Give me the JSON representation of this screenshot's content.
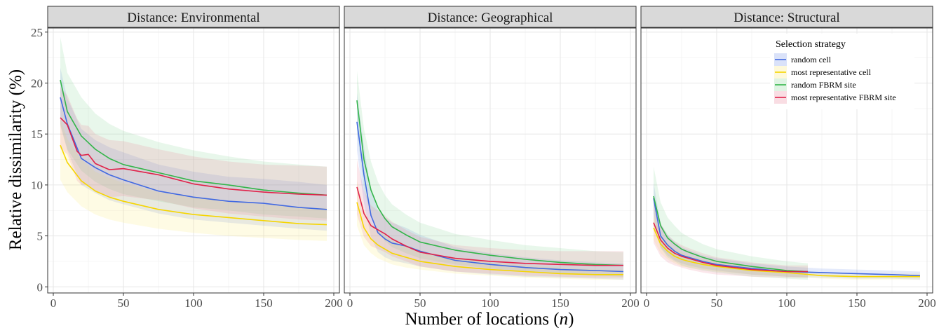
{
  "chart_data": {
    "type": "line",
    "ylabel": "Relative dissimilarity (%)",
    "xlabel_prefix": "Number of locations (",
    "xlabel_var": "n",
    "xlabel_suffix": ")",
    "xlim": [
      0,
      200
    ],
    "ylim": [
      0,
      25
    ],
    "xticks": [
      0,
      50,
      100,
      150,
      200
    ],
    "yticks": [
      0,
      5,
      10,
      15,
      20,
      25
    ],
    "grid": true,
    "legend": {
      "title": "Selection strategy",
      "placement": "top-right of third panel"
    },
    "series_styles": [
      {
        "name": "random cell",
        "color": "#4169E1",
        "fill": "#6a8be8"
      },
      {
        "name": "most representative cell",
        "color": "#F5D500",
        "fill": "#fce96a"
      },
      {
        "name": "random FBRM site",
        "color": "#33B54A",
        "fill": "#7fd28f"
      },
      {
        "name": "most representative FBRM site",
        "color": "#E0224A",
        "fill": "#e8798f"
      }
    ],
    "panels": [
      {
        "strip": "Distance: Environmental",
        "series": [
          {
            "name": "random cell",
            "x": [
              5,
              10,
              20,
              30,
              40,
              50,
              75,
              100,
              125,
              150,
              175,
              195
            ],
            "y": [
              18.6,
              16.0,
              12.6,
              11.7,
              11.0,
              10.5,
              9.4,
              8.8,
              8.4,
              8.2,
              7.8,
              7.6
            ],
            "upper": [
              21.5,
              18.5,
              15.5,
              14.4,
              13.7,
              13.2,
              12.0,
              11.3,
              10.8,
              10.6,
              10.3,
              10.0
            ],
            "lower": [
              15.8,
              13.4,
              10.0,
              9.2,
              8.5,
              8.1,
              7.2,
              6.6,
              6.3,
              6.0,
              5.7,
              5.5
            ]
          },
          {
            "name": "most representative cell",
            "x": [
              5,
              10,
              20,
              30,
              40,
              50,
              75,
              100,
              125,
              150,
              175,
              195
            ],
            "y": [
              13.9,
              12.2,
              10.4,
              9.4,
              8.8,
              8.4,
              7.6,
              7.1,
              6.8,
              6.5,
              6.2,
              6.1
            ],
            "upper": [
              16.5,
              14.5,
              12.5,
              11.3,
              10.7,
              10.2,
              9.3,
              8.8,
              8.4,
              8.1,
              7.8,
              7.7
            ],
            "lower": [
              10.5,
              9.3,
              7.9,
              7.1,
              6.6,
              6.3,
              5.7,
              5.3,
              5.0,
              4.8,
              4.6,
              4.5
            ]
          },
          {
            "name": "random FBRM site",
            "x": [
              5,
              10,
              20,
              30,
              40,
              50,
              75,
              100,
              125,
              150,
              175,
              195
            ],
            "y": [
              20.3,
              17.2,
              14.8,
              13.5,
              12.6,
              12.0,
              11.2,
              10.4,
              10.0,
              9.5,
              9.2,
              9.0
            ],
            "upper": [
              24.5,
              21.0,
              18.6,
              17.0,
              16.0,
              15.3,
              14.2,
              13.4,
              12.8,
              12.3,
              12.0,
              11.8
            ],
            "lower": [
              16.0,
              13.5,
              11.4,
              10.3,
              9.6,
              9.1,
              8.4,
              7.8,
              7.5,
              7.1,
              6.9,
              6.7
            ]
          },
          {
            "name": "most representative FBRM site",
            "x": [
              5,
              10,
              17,
              20,
              25,
              30,
              40,
              50,
              75,
              100,
              125,
              150,
              175,
              195
            ],
            "y": [
              16.6,
              15.9,
              13.3,
              12.9,
              13.0,
              12.1,
              11.5,
              11.6,
              11.0,
              10.1,
              9.6,
              9.3,
              9.1,
              9.0
            ],
            "upper": [
              19.6,
              18.8,
              16.5,
              15.9,
              15.8,
              15.0,
              14.4,
              14.3,
              13.5,
              12.8,
              12.3,
              12.0,
              11.9,
              11.8
            ],
            "lower": [
              13.6,
              13.0,
              10.4,
              10.0,
              10.0,
              9.3,
              8.8,
              8.9,
              8.5,
              7.7,
              7.2,
              6.9,
              6.6,
              6.5
            ]
          }
        ]
      },
      {
        "strip": "Distance: Geographical",
        "series": [
          {
            "name": "random cell",
            "x": [
              5,
              10,
              15,
              20,
              25,
              30,
              40,
              50,
              75,
              100,
              125,
              150,
              175,
              195
            ],
            "y": [
              16.2,
              11.0,
              7.0,
              5.3,
              4.7,
              4.3,
              4.0,
              3.5,
              2.6,
              2.2,
              1.9,
              1.7,
              1.6,
              1.5
            ],
            "upper": [
              19.0,
              13.8,
              9.5,
              7.5,
              6.8,
              6.3,
              5.8,
              5.1,
              3.9,
              3.3,
              2.9,
              2.6,
              2.4,
              2.3
            ],
            "lower": [
              13.4,
              8.2,
              4.9,
              3.4,
              2.9,
              2.6,
              2.3,
              2.0,
              1.5,
              1.2,
              1.0,
              0.9,
              0.8,
              0.7
            ]
          },
          {
            "name": "most representative cell",
            "x": [
              5,
              10,
              15,
              20,
              30,
              40,
              50,
              75,
              100,
              125,
              150,
              175,
              195
            ],
            "y": [
              8.3,
              5.8,
              4.7,
              4.1,
              3.3,
              2.9,
              2.5,
              2.0,
              1.7,
              1.5,
              1.3,
              1.2,
              1.2
            ],
            "upper": [
              10.5,
              7.6,
              6.3,
              5.5,
              4.5,
              3.9,
              3.4,
              2.8,
              2.4,
              2.1,
              1.9,
              1.7,
              1.7
            ],
            "lower": [
              6.0,
              4.1,
              3.3,
              2.8,
              2.2,
              1.9,
              1.7,
              1.3,
              1.1,
              0.9,
              0.8,
              0.7,
              0.7
            ]
          },
          {
            "name": "random FBRM site",
            "x": [
              5,
              10,
              15,
              20,
              25,
              30,
              40,
              50,
              75,
              100,
              125,
              150,
              175,
              195
            ],
            "y": [
              18.3,
              12.5,
              9.5,
              7.8,
              6.7,
              5.9,
              5.1,
              4.4,
              3.6,
              3.1,
              2.7,
              2.4,
              2.2,
              2.1
            ],
            "upper": [
              21.2,
              15.5,
              12.3,
              10.3,
              9.0,
              8.1,
              7.1,
              6.3,
              5.2,
              4.6,
              4.1,
              3.8,
              3.5,
              3.4
            ],
            "lower": [
              15.4,
              9.6,
              6.9,
              5.4,
              4.5,
              3.9,
              3.3,
              2.8,
              2.2,
              1.8,
              1.5,
              1.3,
              1.1,
              1.0
            ]
          },
          {
            "name": "most representative FBRM site",
            "x": [
              5,
              10,
              15,
              20,
              25,
              30,
              40,
              50,
              75,
              100,
              125,
              150,
              175,
              195
            ],
            "y": [
              9.8,
              7.2,
              6.0,
              5.6,
              5.2,
              4.7,
              4.0,
              3.4,
              2.8,
              2.5,
              2.3,
              2.2,
              2.1,
              2.1
            ],
            "upper": [
              12.5,
              9.5,
              8.0,
              7.5,
              7.0,
              6.4,
              5.6,
              4.9,
              4.1,
              3.8,
              3.6,
              3.5,
              3.5,
              3.5
            ],
            "lower": [
              7.1,
              4.9,
              4.0,
              3.7,
              3.4,
              3.0,
              2.5,
              2.0,
              1.5,
              1.3,
              1.1,
              1.0,
              0.9,
              0.9
            ]
          }
        ]
      },
      {
        "strip": "Distance: Structural",
        "series": [
          {
            "name": "random cell",
            "x": [
              5,
              10,
              15,
              20,
              25,
              30,
              40,
              50,
              75,
              100,
              125,
              150,
              175,
              195
            ],
            "y": [
              8.7,
              5.0,
              4.1,
              3.5,
              3.1,
              2.9,
              2.5,
              2.2,
              1.8,
              1.5,
              1.4,
              1.3,
              1.2,
              1.1
            ],
            "upper": [
              10.2,
              6.2,
              5.1,
              4.4,
              3.9,
              3.6,
              3.1,
              2.8,
              2.3,
              2.0,
              1.8,
              1.7,
              1.6,
              1.5
            ],
            "lower": [
              7.2,
              3.9,
              3.1,
              2.6,
              2.3,
              2.1,
              1.8,
              1.6,
              1.2,
              1.0,
              0.9,
              0.8,
              0.8,
              0.7
            ]
          },
          {
            "name": "most representative cell",
            "x": [
              5,
              10,
              15,
              20,
              25,
              30,
              40,
              50,
              75,
              100,
              125,
              150,
              175,
              195
            ],
            "y": [
              5.8,
              4.2,
              3.5,
              3.0,
              2.7,
              2.5,
              2.2,
              2.0,
              1.6,
              1.4,
              1.1,
              1.0,
              1.0,
              1.0
            ],
            "upper": [
              7.0,
              5.1,
              4.3,
              3.7,
              3.4,
              3.1,
              2.7,
              2.5,
              2.0,
              1.7,
              1.4,
              1.3,
              1.3,
              1.3
            ],
            "lower": [
              4.6,
              3.3,
              2.7,
              2.3,
              2.0,
              1.9,
              1.7,
              1.5,
              1.2,
              1.0,
              0.8,
              0.7,
              0.7,
              0.7
            ]
          },
          {
            "name": "random FBRM site",
            "x": [
              5,
              10,
              15,
              20,
              25,
              30,
              40,
              50,
              75,
              100,
              115
            ],
            "y": [
              8.9,
              6.0,
              4.8,
              4.2,
              3.7,
              3.4,
              2.9,
              2.5,
              2.0,
              1.6,
              1.5
            ],
            "upper": [
              11.8,
              8.3,
              6.8,
              6.0,
              5.3,
              4.9,
              4.2,
              3.7,
              3.0,
              2.5,
              2.3
            ],
            "lower": [
              6.0,
              3.8,
              2.9,
              2.5,
              2.1,
              1.9,
              1.6,
              1.4,
              1.0,
              0.8,
              0.7
            ]
          },
          {
            "name": "most representative FBRM site",
            "x": [
              5,
              10,
              15,
              20,
              25,
              30,
              40,
              50,
              75,
              100,
              115
            ],
            "y": [
              6.3,
              4.6,
              3.8,
              3.3,
              3.0,
              2.8,
              2.4,
              2.1,
              1.7,
              1.5,
              1.5
            ],
            "upper": [
              8.3,
              6.2,
              5.1,
              4.5,
              4.1,
              3.8,
              3.3,
              2.9,
              2.4,
              2.1,
              2.1
            ],
            "lower": [
              4.3,
              3.0,
              2.4,
              2.1,
              1.9,
              1.7,
              1.4,
              1.2,
              1.0,
              0.9,
              0.9
            ]
          }
        ]
      }
    ]
  }
}
